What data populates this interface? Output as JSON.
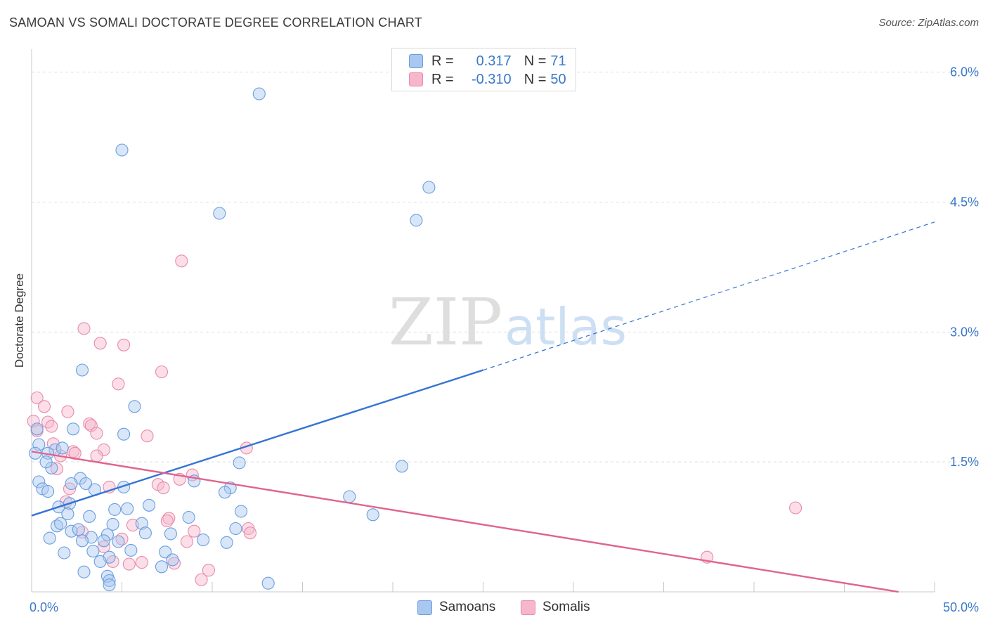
{
  "title": "SAMOAN VS SOMALI DOCTORATE DEGREE CORRELATION CHART",
  "source": "Source: ZipAtlas.com",
  "watermark": {
    "zip": "ZIP",
    "atlas": "atlas"
  },
  "legend": {
    "samoans": {
      "r_label": "R =",
      "r_value": "0.317",
      "n_label": "N =",
      "n_value": "71"
    },
    "somalis": {
      "r_label": "R =",
      "r_value": "-0.310",
      "n_label": "N =",
      "n_value": "50"
    }
  },
  "colors": {
    "samoans_fill": "#a9c8f0",
    "samoans_stroke": "#6a9ee0",
    "samoans_line": "#3474d4",
    "somalis_fill": "#f6b6cb",
    "somalis_stroke": "#e98aaa",
    "somalis_line": "#e0638f",
    "axis_text": "#3a78c9",
    "grid": "#dddddd"
  },
  "chart_data": {
    "type": "scatter",
    "title": "SAMOAN VS SOMALI DOCTORATE DEGREE CORRELATION CHART",
    "xlabel": "",
    "ylabel": "Doctorate Degree",
    "xlim": [
      0,
      50
    ],
    "ylim": [
      0,
      6.2
    ],
    "x_tick_labels": [
      "0.0%",
      "50.0%"
    ],
    "y_ticks": [
      1.5,
      3.0,
      4.5,
      6.0
    ],
    "y_tick_labels": [
      "1.5%",
      "3.0%",
      "4.5%",
      "6.0%"
    ],
    "legend_position": "bottom-center",
    "series": [
      {
        "name": "Samoans",
        "r": 0.317,
        "n": 71,
        "trend": {
          "x0": 0,
          "y0": 0.88,
          "x1": 25,
          "y1": 2.56,
          "dash_to_x": 50,
          "dash_to_y": 4.27
        },
        "points": [
          [
            12.6,
            5.75
          ],
          [
            5.0,
            5.1
          ],
          [
            22.0,
            4.67
          ],
          [
            10.4,
            4.37
          ],
          [
            21.3,
            4.29
          ],
          [
            2.8,
            2.56
          ],
          [
            5.7,
            2.14
          ],
          [
            0.3,
            1.88
          ],
          [
            2.3,
            1.88
          ],
          [
            5.1,
            1.82
          ],
          [
            0.4,
            1.7
          ],
          [
            1.3,
            1.64
          ],
          [
            0.9,
            1.6
          ],
          [
            1.7,
            1.66
          ],
          [
            20.5,
            1.45
          ],
          [
            11.5,
            1.49
          ],
          [
            1.1,
            1.43
          ],
          [
            0.4,
            1.27
          ],
          [
            2.7,
            1.31
          ],
          [
            2.2,
            1.25
          ],
          [
            3.0,
            1.25
          ],
          [
            9.0,
            1.28
          ],
          [
            0.6,
            1.19
          ],
          [
            0.9,
            1.16
          ],
          [
            3.5,
            1.18
          ],
          [
            5.1,
            1.21
          ],
          [
            11.0,
            1.2
          ],
          [
            10.7,
            1.15
          ],
          [
            17.6,
            1.1
          ],
          [
            1.5,
            0.98
          ],
          [
            2.1,
            1.02
          ],
          [
            5.3,
            0.96
          ],
          [
            8.7,
            0.86
          ],
          [
            11.6,
            0.93
          ],
          [
            3.2,
            0.87
          ],
          [
            18.9,
            0.89
          ],
          [
            1.4,
            0.76
          ],
          [
            1.6,
            0.79
          ],
          [
            2.2,
            0.7
          ],
          [
            2.6,
            0.72
          ],
          [
            4.5,
            0.78
          ],
          [
            6.1,
            0.79
          ],
          [
            11.3,
            0.73
          ],
          [
            4.2,
            0.66
          ],
          [
            6.3,
            0.68
          ],
          [
            4.0,
            0.59
          ],
          [
            3.3,
            0.63
          ],
          [
            2.8,
            0.59
          ],
          [
            4.8,
            0.58
          ],
          [
            7.7,
            0.67
          ],
          [
            10.8,
            0.57
          ],
          [
            5.5,
            0.48
          ],
          [
            7.4,
            0.46
          ],
          [
            1.8,
            0.45
          ],
          [
            3.4,
            0.47
          ],
          [
            4.3,
            0.4
          ],
          [
            7.8,
            0.37
          ],
          [
            7.2,
            0.29
          ],
          [
            2.9,
            0.23
          ],
          [
            4.2,
            0.18
          ],
          [
            4.3,
            0.13
          ],
          [
            13.1,
            0.1
          ],
          [
            4.3,
            0.08
          ],
          [
            0.8,
            1.5
          ],
          [
            1.0,
            0.62
          ],
          [
            2.0,
            0.9
          ],
          [
            6.5,
            1.0
          ],
          [
            0.2,
            1.6
          ],
          [
            3.8,
            0.35
          ],
          [
            9.5,
            0.6
          ],
          [
            4.6,
            0.95
          ]
        ]
      },
      {
        "name": "Somalis",
        "r": -0.31,
        "n": 50,
        "trend": {
          "x0": 0,
          "y0": 1.62,
          "x1": 48,
          "y1": 0.0
        },
        "points": [
          [
            8.3,
            3.82
          ],
          [
            2.9,
            3.04
          ],
          [
            3.8,
            2.87
          ],
          [
            5.1,
            2.85
          ],
          [
            7.2,
            2.54
          ],
          [
            4.8,
            2.4
          ],
          [
            0.3,
            2.24
          ],
          [
            0.7,
            2.14
          ],
          [
            2.0,
            2.08
          ],
          [
            0.1,
            1.97
          ],
          [
            0.9,
            1.96
          ],
          [
            3.2,
            1.94
          ],
          [
            3.3,
            1.92
          ],
          [
            1.1,
            1.91
          ],
          [
            0.3,
            1.86
          ],
          [
            3.6,
            1.83
          ],
          [
            6.4,
            1.8
          ],
          [
            1.2,
            1.71
          ],
          [
            11.9,
            1.66
          ],
          [
            4.0,
            1.64
          ],
          [
            2.3,
            1.62
          ],
          [
            2.4,
            1.6
          ],
          [
            1.6,
            1.57
          ],
          [
            3.6,
            1.57
          ],
          [
            1.4,
            1.42
          ],
          [
            8.9,
            1.35
          ],
          [
            8.2,
            1.3
          ],
          [
            4.3,
            1.21
          ],
          [
            7.0,
            1.24
          ],
          [
            7.3,
            1.2
          ],
          [
            2.1,
            1.19
          ],
          [
            1.9,
            1.04
          ],
          [
            42.3,
            0.97
          ],
          [
            7.6,
            0.85
          ],
          [
            7.5,
            0.82
          ],
          [
            5.6,
            0.77
          ],
          [
            12.0,
            0.73
          ],
          [
            12.1,
            0.68
          ],
          [
            9.0,
            0.7
          ],
          [
            2.8,
            0.69
          ],
          [
            5.0,
            0.61
          ],
          [
            8.6,
            0.58
          ],
          [
            4.0,
            0.52
          ],
          [
            4.5,
            0.35
          ],
          [
            6.1,
            0.34
          ],
          [
            5.4,
            0.32
          ],
          [
            7.9,
            0.33
          ],
          [
            9.8,
            0.25
          ],
          [
            37.4,
            0.4
          ],
          [
            9.4,
            0.14
          ]
        ]
      }
    ]
  },
  "bottom_legend": {
    "samoans": "Samoans",
    "somalis": "Somalis"
  }
}
